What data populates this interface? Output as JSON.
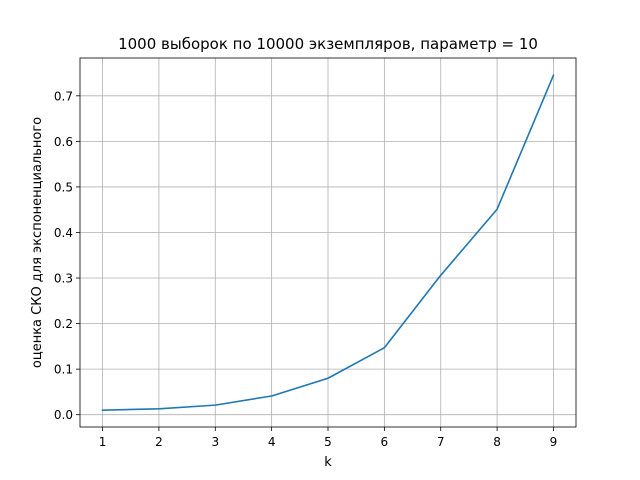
{
  "chart_data": {
    "type": "line",
    "title": "1000 выборок по 10000 экземпляров, параметр = 10",
    "xlabel": "k",
    "ylabel": "оценка СКО для экспоненциального",
    "xlim": [
      0.6,
      9.4
    ],
    "ylim": [
      -0.027,
      0.783
    ],
    "x_ticks": [
      1,
      2,
      3,
      4,
      5,
      6,
      7,
      8,
      9
    ],
    "y_ticks": [
      0.0,
      0.1,
      0.2,
      0.3,
      0.4,
      0.5,
      0.6,
      0.7
    ],
    "y_tick_labels": [
      "0.0",
      "0.1",
      "0.2",
      "0.3",
      "0.4",
      "0.5",
      "0.6",
      "0.7"
    ],
    "grid": true,
    "series": [
      {
        "color": "#1f77b4",
        "x": [
          1,
          2,
          3,
          4,
          5,
          6,
          7,
          8,
          9
        ],
        "y": [
          0.01,
          0.013,
          0.021,
          0.041,
          0.08,
          0.147,
          0.306,
          0.451,
          0.745
        ]
      }
    ]
  }
}
